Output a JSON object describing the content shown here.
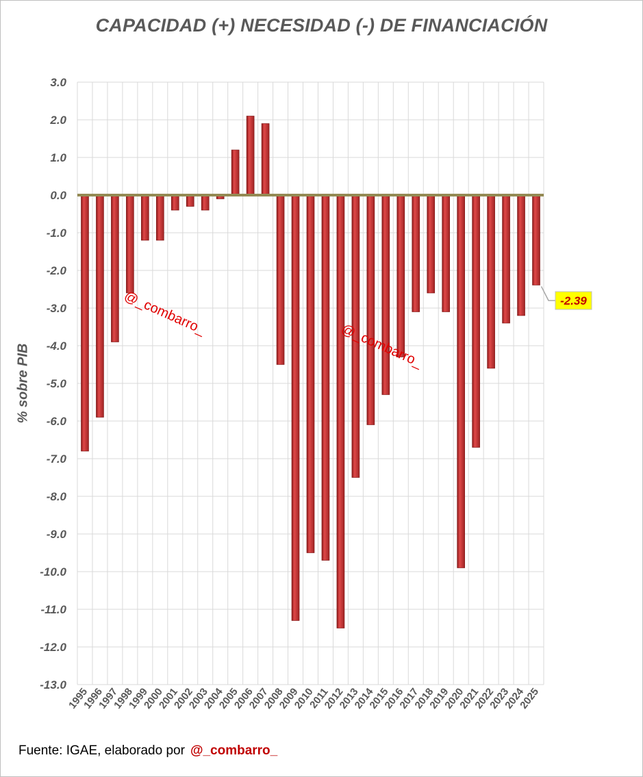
{
  "chart_data": {
    "type": "bar",
    "title": "CAPACIDAD (+) NECESIDAD (-) DE FINANCIACIÓN",
    "xlabel": "",
    "ylabel": "% sobre PIB",
    "ylim": [
      -13.0,
      3.0
    ],
    "yticks": [
      "3.0",
      "2.0",
      "1.0",
      "0.0",
      "-1.0",
      "-2.0",
      "-3.0",
      "-4.0",
      "-5.0",
      "-6.0",
      "-7.0",
      "-8.0",
      "-9.0",
      "-10.0",
      "-11.0",
      "-12.0",
      "-13.0"
    ],
    "grid": true,
    "categories": [
      "1995",
      "1996",
      "1997",
      "1998",
      "1999",
      "2000",
      "2001",
      "2002",
      "2003",
      "2004",
      "2005",
      "2006",
      "2007",
      "2008",
      "2009",
      "2010",
      "2011",
      "2012",
      "2013",
      "2014",
      "2015",
      "2016",
      "2017",
      "2018",
      "2019",
      "2020",
      "2021",
      "2022",
      "2023",
      "2024",
      "2025"
    ],
    "values": [
      -6.8,
      -5.9,
      -3.9,
      -2.6,
      -1.2,
      -1.2,
      -0.4,
      -0.3,
      -0.4,
      -0.1,
      1.2,
      2.1,
      1.9,
      -4.5,
      -11.3,
      -9.5,
      -9.7,
      -11.5,
      -7.5,
      -6.1,
      -5.3,
      -4.3,
      -3.1,
      -2.6,
      -3.1,
      -9.9,
      -6.7,
      -4.6,
      -3.4,
      -3.2,
      -2.39
    ],
    "callout": {
      "label": "-2.39",
      "category": "2025"
    },
    "series_color": "#c00000",
    "zero_line_color": "#948a54",
    "callout_bg": "#ffff00"
  },
  "watermarks": [
    "@_combarro_",
    "@_combarro_"
  ],
  "source": {
    "text": "Fuente: IGAE, elaborado por",
    "handle": "@_combarro_"
  }
}
